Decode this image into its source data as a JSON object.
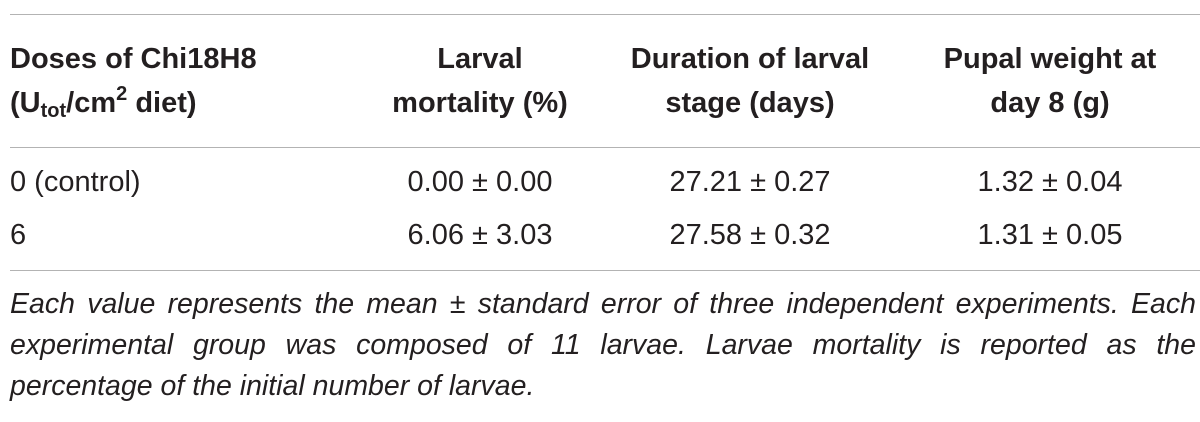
{
  "table": {
    "headers": [
      {
        "line1": "Doses of Chi18H8",
        "line2_prefix": "(U",
        "line2_sub": "tot",
        "line2_mid": "/cm",
        "line2_sup": "2",
        "line2_suffix": " diet)"
      },
      {
        "line1": "Larval",
        "line2": "mortality (%)"
      },
      {
        "line1": "Duration of larval",
        "line2": "stage (days)"
      },
      {
        "line1": "Pupal weight at",
        "line2": "day 8 (g)"
      }
    ],
    "rows": [
      {
        "dose": "0 (control)",
        "mortality": "0.00 ± 0.00",
        "duration": "27.21 ± 0.27",
        "pupal_weight": "1.32 ± 0.04"
      },
      {
        "dose": "6",
        "mortality": "6.06 ± 3.03",
        "duration": "27.58 ± 0.32",
        "pupal_weight": "1.31 ± 0.05"
      }
    ]
  },
  "footnote": "Each value represents the mean ± standard error of three independent experiments. Each experimental group was composed of 11 larvae. Larvae mortality is reported as the percentage of the initial number of larvae."
}
